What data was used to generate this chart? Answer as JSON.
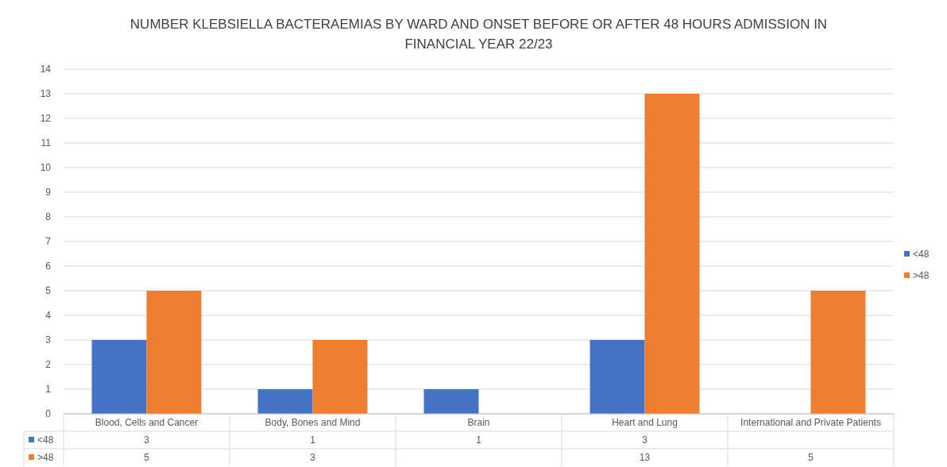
{
  "chart_data": {
    "type": "bar",
    "title": "NUMBER KLEBSIELLA BACTERAEMIAS BY WARD AND ONSET BEFORE OR AFTER 48 HOURS ADMISSION IN FINANCIAL YEAR 22/23",
    "categories": [
      "Blood, Cells and Cancer",
      "Body, Bones and Mind",
      "Brain",
      "Heart and Lung",
      "International and Private Patients"
    ],
    "series": [
      {
        "name": "<48",
        "color": "#4472c4",
        "values": [
          3,
          1,
          1,
          3,
          null
        ]
      },
      {
        "name": ">48",
        "color": "#ed7d31",
        "values": [
          5,
          3,
          null,
          13,
          5
        ]
      }
    ],
    "ylim": [
      0,
      14
    ],
    "yticks": [
      0,
      1,
      2,
      3,
      4,
      5,
      6,
      7,
      8,
      9,
      10,
      11,
      12,
      13,
      14
    ],
    "grid": "y",
    "legend": "right",
    "data_labels": true
  }
}
